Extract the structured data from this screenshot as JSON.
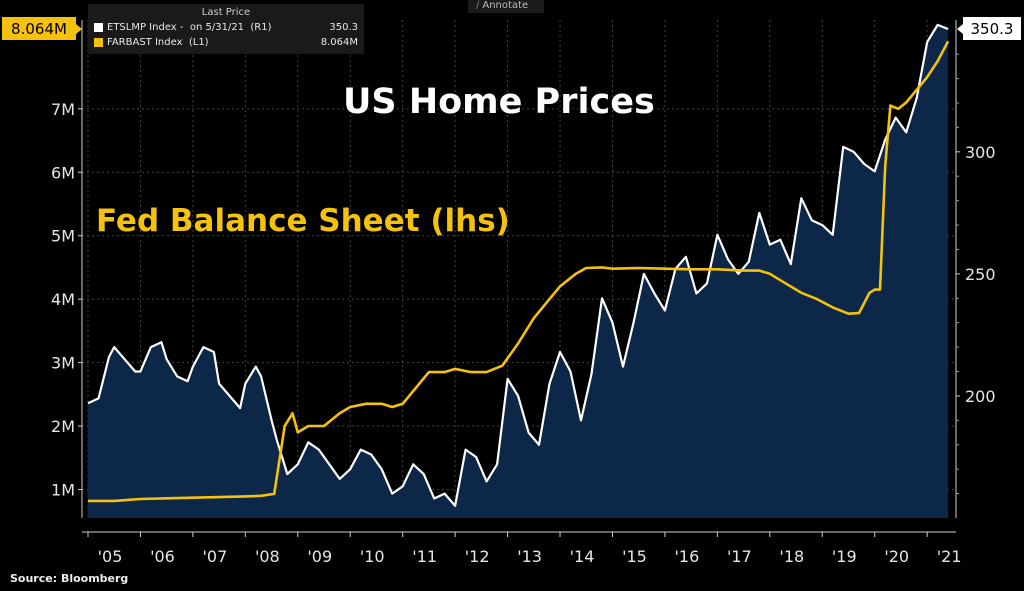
{
  "legend": {
    "header": "Last Price",
    "items": [
      {
        "name": "ETSLMP Index -  on 5/31/21  (R1)",
        "value": "350.3",
        "color": "#ffffff"
      },
      {
        "name": "FARBAST Index  (L1)",
        "value": "8.064M",
        "color": "#f4c20d"
      }
    ]
  },
  "annotate_label": "Annotate",
  "source": "Source: Bloomberg",
  "chart_data": {
    "type": "line",
    "title": "US Home Prices",
    "subtitle": "Fed Balance Sheet (lhs)",
    "x_ticks": [
      "'05",
      "'06",
      "'07",
      "'08",
      "'09",
      "'10",
      "'11",
      "'12",
      "'13",
      "'14",
      "'15",
      "'16",
      "'17",
      "'18",
      "'19",
      "'20",
      "'21"
    ],
    "left_axis": {
      "ticks": [
        "1M",
        "2M",
        "3M",
        "4M",
        "5M",
        "6M",
        "7M"
      ],
      "ylim": [
        0.55,
        8.4
      ],
      "last_value_label": "8.064M"
    },
    "right_axis": {
      "ticks": [
        "200",
        "250",
        "300"
      ],
      "ylim": [
        150,
        354
      ],
      "last_value_label": "350.3"
    },
    "grid": true,
    "series": [
      {
        "name": "ETSLMP Index",
        "axis": "right",
        "color": "#ffffff",
        "style": "area",
        "x": [
          2005.0,
          2005.2,
          2005.4,
          2005.5,
          2005.7,
          2005.9,
          2006.0,
          2006.2,
          2006.4,
          2006.5,
          2006.7,
          2006.9,
          2007.0,
          2007.2,
          2007.4,
          2007.5,
          2007.7,
          2007.9,
          2008.0,
          2008.2,
          2008.3,
          2008.5,
          2008.6,
          2008.8,
          2009.0,
          2009.2,
          2009.4,
          2009.6,
          2009.8,
          2010.0,
          2010.2,
          2010.4,
          2010.6,
          2010.8,
          2011.0,
          2011.2,
          2011.4,
          2011.6,
          2011.8,
          2012.0,
          2012.2,
          2012.4,
          2012.6,
          2012.8,
          2013.0,
          2013.2,
          2013.4,
          2013.6,
          2013.8,
          2014.0,
          2014.2,
          2014.4,
          2014.6,
          2014.8,
          2015.0,
          2015.2,
          2015.4,
          2015.6,
          2015.8,
          2016.0,
          2016.2,
          2016.4,
          2016.6,
          2016.8,
          2017.0,
          2017.2,
          2017.4,
          2017.6,
          2017.8,
          2018.0,
          2018.2,
          2018.4,
          2018.6,
          2018.8,
          2019.0,
          2019.2,
          2019.4,
          2019.6,
          2019.8,
          2020.0,
          2020.2,
          2020.4,
          2020.6,
          2020.8,
          2021.0,
          2021.2,
          2021.4
        ],
        "values": [
          197,
          199,
          216,
          220,
          215,
          210,
          210,
          220,
          222,
          215,
          208,
          206,
          212,
          220,
          218,
          205,
          200,
          195,
          205,
          212,
          208,
          190,
          182,
          168,
          172,
          181,
          178,
          172,
          166,
          170,
          178,
          176,
          170,
          160,
          163,
          172,
          168,
          158,
          160,
          155,
          178,
          175,
          165,
          172,
          207,
          200,
          185,
          180,
          205,
          218,
          210,
          190,
          209,
          240,
          230,
          212,
          230,
          250,
          242,
          235,
          252,
          257,
          242,
          246,
          266,
          256,
          250,
          255,
          275,
          262,
          264,
          254,
          281,
          272,
          270,
          266,
          302,
          300,
          295,
          292,
          305,
          314,
          308,
          322,
          345,
          352,
          350.3
        ]
      },
      {
        "name": "FARBAST Index",
        "axis": "left",
        "color": "#f4c20d",
        "style": "line",
        "x": [
          2005.0,
          2005.5,
          2006.0,
          2006.5,
          2007.0,
          2007.5,
          2008.0,
          2008.3,
          2008.55,
          2008.75,
          2008.9,
          2009.0,
          2009.2,
          2009.5,
          2009.8,
          2010.0,
          2010.3,
          2010.6,
          2010.8,
          2011.0,
          2011.3,
          2011.5,
          2011.8,
          2012.0,
          2012.3,
          2012.6,
          2012.9,
          2013.2,
          2013.5,
          2013.8,
          2014.0,
          2014.3,
          2014.5,
          2014.8,
          2015.0,
          2015.5,
          2016.0,
          2016.5,
          2017.0,
          2017.5,
          2017.8,
          2018.0,
          2018.3,
          2018.6,
          2018.9,
          2019.2,
          2019.5,
          2019.7,
          2019.9,
          2020.0,
          2020.1,
          2020.2,
          2020.3,
          2020.45,
          2020.6,
          2020.8,
          2021.0,
          2021.2,
          2021.4
        ],
        "values": [
          0.82,
          0.82,
          0.85,
          0.86,
          0.87,
          0.88,
          0.89,
          0.9,
          0.93,
          2.0,
          2.2,
          1.9,
          2.0,
          2.0,
          2.2,
          2.3,
          2.35,
          2.35,
          2.3,
          2.35,
          2.65,
          2.85,
          2.85,
          2.9,
          2.85,
          2.85,
          2.95,
          3.3,
          3.7,
          4.0,
          4.2,
          4.4,
          4.49,
          4.5,
          4.48,
          4.49,
          4.48,
          4.47,
          4.47,
          4.45,
          4.45,
          4.4,
          4.25,
          4.1,
          4.0,
          3.87,
          3.77,
          3.78,
          4.1,
          4.15,
          4.15,
          6.1,
          7.05,
          7.0,
          7.1,
          7.3,
          7.5,
          7.75,
          8.064
        ]
      }
    ]
  }
}
